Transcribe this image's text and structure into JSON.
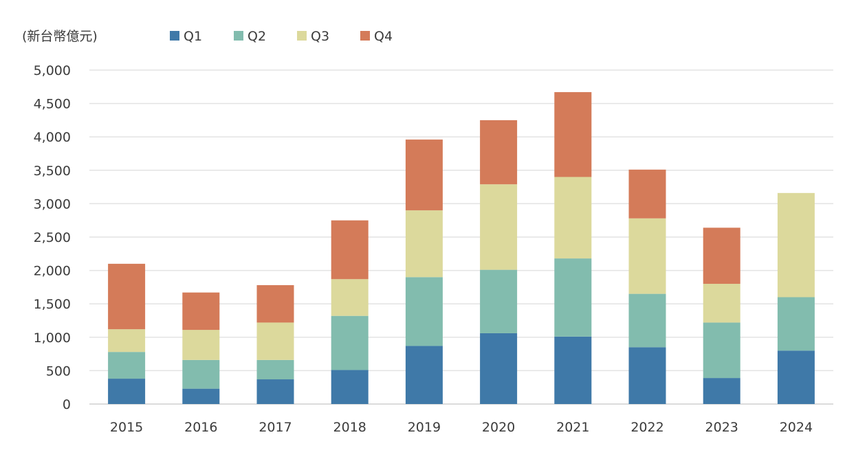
{
  "chart_data": {
    "type": "bar",
    "stacked": true,
    "title": "",
    "unit_label": "(新台幣億元)",
    "xlabel": "",
    "ylabel": "",
    "categories": [
      "2015",
      "2016",
      "2017",
      "2018",
      "2019",
      "2020",
      "2021",
      "2022",
      "2023",
      "2024"
    ],
    "series": [
      {
        "name": "Q1",
        "color": "#3f79a8",
        "values": [
          380,
          230,
          370,
          510,
          870,
          1060,
          1010,
          850,
          390,
          800
        ]
      },
      {
        "name": "Q2",
        "color": "#82bcae",
        "values": [
          400,
          430,
          290,
          810,
          1030,
          950,
          1170,
          800,
          830,
          800
        ]
      },
      {
        "name": "Q3",
        "color": "#dcd99c",
        "values": [
          340,
          450,
          560,
          550,
          1000,
          1280,
          1220,
          1130,
          580,
          1560
        ]
      },
      {
        "name": "Q4",
        "color": "#d47b59",
        "values": [
          980,
          560,
          560,
          880,
          1060,
          960,
          1270,
          730,
          840,
          0
        ]
      }
    ],
    "ylim": [
      0,
      5000
    ],
    "yticks": [
      0,
      500,
      1000,
      1500,
      2000,
      2500,
      3000,
      3500,
      4000,
      4500,
      5000
    ],
    "ytick_labels": [
      "0",
      "500",
      "1,000",
      "1,500",
      "2,000",
      "2,500",
      "3,000",
      "3,500",
      "4,000",
      "4,500",
      "5,000"
    ],
    "grid": true,
    "legend_position": "top-left"
  }
}
